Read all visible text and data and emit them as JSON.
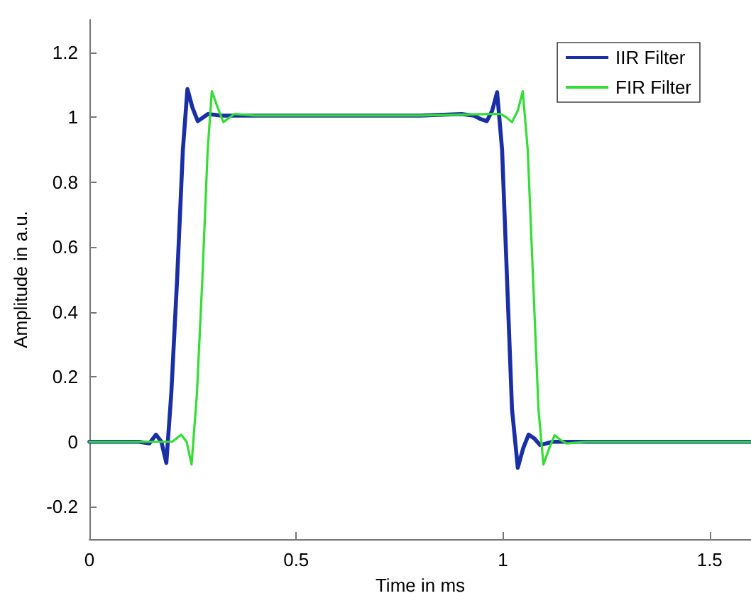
{
  "chart_data": {
    "type": "line",
    "xlabel": "Time in ms",
    "ylabel": "Amplitude in a.u.",
    "xlim": [
      0,
      1.6
    ],
    "xticks": [
      0,
      0.5,
      1,
      1.5
    ],
    "ylim": [
      -0.3,
      1.3
    ],
    "yticks": [
      -0.2,
      0,
      0.2,
      0.4,
      0.6,
      0.8,
      1,
      1.2
    ],
    "grid": false,
    "legend": "top right",
    "marker": "none",
    "line_style": "solid",
    "series": [
      {
        "name": "IIR Filter",
        "color": "#1a2ea6",
        "x": [
          0,
          0.12,
          0.145,
          0.161,
          0.174,
          0.186,
          0.198,
          0.212,
          0.226,
          0.237,
          0.249,
          0.262,
          0.287,
          0.32,
          0.4,
          0.6,
          0.8,
          0.9,
          0.93,
          0.945,
          0.961,
          0.974,
          0.986,
          0.998,
          1.01,
          1.022,
          1.036,
          1.049,
          1.062,
          1.076,
          1.09,
          1.12,
          1.3,
          1.6
        ],
        "values": [
          0,
          0,
          -0.005,
          0.022,
          0.0,
          -0.065,
          0.15,
          0.5,
          0.9,
          1.087,
          1.03,
          0.988,
          1.01,
          1.005,
          1.005,
          1.005,
          1.005,
          1.01,
          1.005,
          0.995,
          0.988,
          1.02,
          1.077,
          0.9,
          0.5,
          0.1,
          -0.08,
          -0.02,
          0.022,
          0.01,
          -0.01,
          0,
          0,
          0
        ]
      },
      {
        "name": "FIR Filter",
        "color": "#33dd33",
        "x": [
          0,
          0.17,
          0.2,
          0.222,
          0.235,
          0.247,
          0.26,
          0.273,
          0.286,
          0.296,
          0.31,
          0.324,
          0.35,
          0.4,
          0.6,
          0.8,
          0.97,
          0.994,
          1.008,
          1.022,
          1.036,
          1.048,
          1.06,
          1.073,
          1.086,
          1.098,
          1.112,
          1.125,
          1.14,
          1.154,
          1.2,
          1.4,
          1.6
        ],
        "values": [
          0,
          0,
          0.0,
          0.022,
          0.0,
          -0.07,
          0.15,
          0.5,
          0.9,
          1.08,
          1.03,
          0.985,
          1.01,
          1.005,
          1.005,
          1.005,
          1.01,
          1.01,
          1.0,
          0.985,
          1.02,
          1.08,
          0.9,
          0.5,
          0.1,
          -0.07,
          -0.02,
          0.02,
          0.005,
          -0.005,
          0,
          0,
          0
        ]
      }
    ]
  }
}
